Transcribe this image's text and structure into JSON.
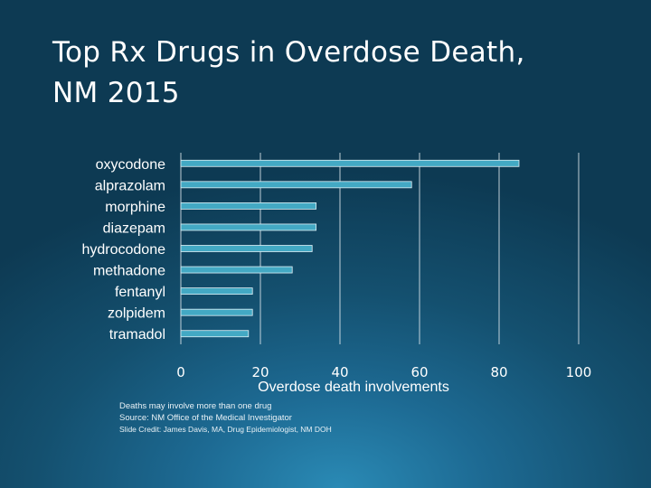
{
  "slide": {
    "title_line1": "Top Rx Drugs in Overdose Death,",
    "title_line2": "NM 2015"
  },
  "chart_data": {
    "type": "bar",
    "orientation": "horizontal",
    "categories": [
      "oxycodone",
      "alprazolam",
      "morphine",
      "diazepam",
      "hydrocodone",
      "methadone",
      "fentanyl",
      "zolpidem",
      "tramadol"
    ],
    "values": [
      85,
      58,
      34,
      34,
      33,
      28,
      18,
      18,
      17
    ],
    "xlabel": "Overdose death involvements",
    "ylabel": "",
    "xlim": [
      0,
      100
    ],
    "xticks": [
      "0",
      "20",
      "40",
      "60",
      "80",
      "100"
    ],
    "grid": true,
    "colors": {
      "bar": "#43a9c4",
      "bar_edge": "#dff1f7",
      "grid": "#dfe8ee"
    }
  },
  "notes": {
    "line1": "Deaths may involve more than one drug",
    "line2": "Source:  NM Office of the Medical Investigator",
    "credit": "Slide Credit: James Davis, MA, Drug Epidemiologist, NM DOH"
  }
}
